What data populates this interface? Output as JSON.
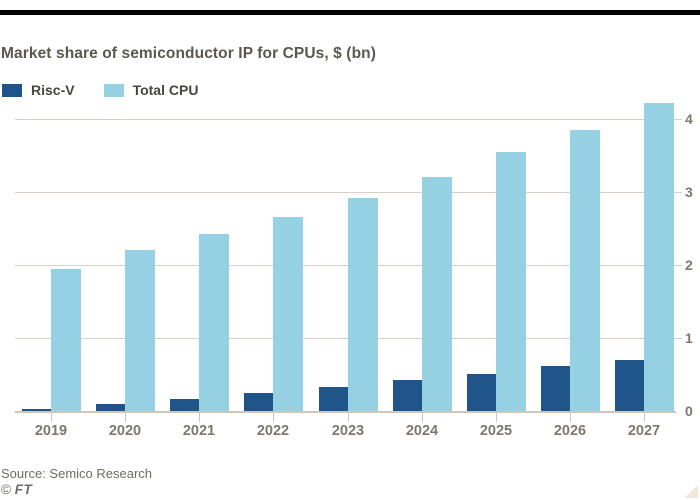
{
  "title": "Market share of semiconductor IP for CPUs, $ (bn)",
  "legend": {
    "items": [
      {
        "label": "Risc-V",
        "color": "#20558A"
      },
      {
        "label": "Total CPU",
        "color": "#96D1E3"
      }
    ]
  },
  "footer": {
    "source": "Source: Semico Research",
    "credit_symbol": "©",
    "credit_text": "FT"
  },
  "colors": {
    "riscv_bar": "#20558A",
    "total_cpu_bar": "#96D1E3",
    "gridline": "#D8D0C7",
    "axis_line": "#CFC5BA",
    "axis_text": "#7E776D",
    "title_text": "#5C564F",
    "top_rule": "#000000",
    "corner_triangle": "#F2E5D9"
  },
  "chart_data": {
    "type": "bar",
    "title": "Market share of semiconductor IP for CPUs, $ (bn)",
    "categories": [
      "2019",
      "2020",
      "2021",
      "2022",
      "2023",
      "2024",
      "2025",
      "2026",
      "2027"
    ],
    "series": [
      {
        "name": "Risc-V",
        "color": "#20558A",
        "values": [
          0.03,
          0.09,
          0.17,
          0.25,
          0.33,
          0.42,
          0.51,
          0.61,
          0.7
        ]
      },
      {
        "name": "Total CPU",
        "color": "#96D1E3",
        "values": [
          1.95,
          2.2,
          2.42,
          2.66,
          2.92,
          3.2,
          3.55,
          3.85,
          4.22
        ]
      }
    ],
    "xlabel": "",
    "ylabel": "",
    "ylim": [
      0,
      4.4
    ],
    "yticks": [
      0,
      1,
      2,
      3,
      4
    ],
    "grid": true,
    "grid_axis": "y",
    "ytick_side": "right",
    "legend_position": "top-left",
    "source": "Source: Semico Research"
  }
}
